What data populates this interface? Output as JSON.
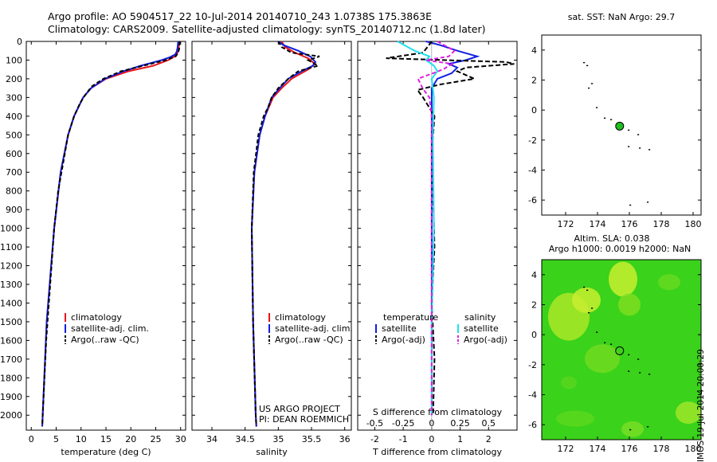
{
  "header": {
    "title_line1": "Argo profile: AO 5904517_22 10-Jul-2014 20140710_243 1.0738S 175.3863E",
    "title_line2": "Climatology: CARS2009. Satellite-adjusted climatology: synTS_20140712.nc (1.8d later)"
  },
  "footer_stamp": "IMOS 19-Jul-2014 20:00:29",
  "chart_data": [
    {
      "id": "temperature",
      "type": "line",
      "xlabel": "temperature (deg C)",
      "xlim": [
        -1,
        31
      ],
      "xticks": [
        0,
        5,
        10,
        15,
        20,
        25,
        30
      ],
      "ylim": [
        2080,
        0
      ],
      "yticks": [
        0,
        100,
        200,
        300,
        400,
        500,
        600,
        700,
        800,
        900,
        1000,
        1100,
        1200,
        1300,
        1400,
        1500,
        1600,
        1700,
        1800,
        1900,
        2000
      ],
      "legend": [
        "climatology",
        "satellite-adj. clim.",
        "Argo(..raw -QC)"
      ],
      "colors": [
        "#e8141a",
        "#1020e0",
        "#000000"
      ],
      "series": [
        {
          "name": "climatology",
          "y": [
            0,
            40,
            60,
            80,
            100,
            130,
            160,
            200,
            250,
            300,
            400,
            500,
            700,
            1000,
            1500,
            2000,
            2060
          ],
          "x": [
            29.7,
            29.6,
            29.4,
            28.8,
            27.5,
            24.5,
            19.5,
            15.0,
            12.0,
            10.4,
            8.6,
            7.4,
            5.9,
            4.6,
            3.1,
            2.3,
            2.2
          ]
        },
        {
          "name": "satellite-adj. clim.",
          "y": [
            0,
            30,
            55,
            70,
            85,
            100,
            130,
            160,
            200,
            250,
            300,
            400,
            500,
            700,
            1000,
            1500,
            2000,
            2060
          ],
          "x": [
            29.5,
            29.4,
            29.2,
            28.9,
            27.8,
            26.2,
            22.0,
            18.5,
            14.8,
            12.0,
            10.4,
            8.6,
            7.4,
            5.9,
            4.6,
            3.1,
            2.3,
            2.2
          ]
        },
        {
          "name": "Argo(..raw -QC)",
          "y": [
            0,
            40,
            60,
            80,
            100,
            130,
            160,
            200,
            240,
            280,
            330,
            400,
            500,
            650,
            800,
            1000,
            1300,
            1600,
            2000,
            2060
          ],
          "x": [
            29.8,
            29.7,
            29.5,
            29.0,
            27.0,
            22.5,
            18.0,
            14.5,
            12.2,
            11.0,
            9.8,
            8.6,
            7.4,
            6.4,
            5.4,
            4.6,
            3.8,
            3.0,
            2.3,
            2.2
          ]
        }
      ]
    },
    {
      "id": "salinity",
      "type": "line",
      "xlabel": "salinity",
      "xlim": [
        33.7,
        36.1
      ],
      "xticks": [
        34,
        34.5,
        35,
        35.5,
        36
      ],
      "ylim": [
        2080,
        0
      ],
      "legend": [
        "climatology",
        "satellite-adj. clim.",
        "Argo(..raw -QC)"
      ],
      "colors": [
        "#e8141a",
        "#1020e0",
        "#000000"
      ],
      "series": [
        {
          "name": "climatology",
          "y": [
            0,
            30,
            60,
            90,
            120,
            150,
            200,
            250,
            300,
            400,
            500,
            700,
            1000,
            1500,
            2000,
            2060
          ],
          "x": [
            35.05,
            35.1,
            35.25,
            35.45,
            35.55,
            35.45,
            35.2,
            35.05,
            34.92,
            34.8,
            34.72,
            34.64,
            34.6,
            34.62,
            34.66,
            34.67
          ]
        },
        {
          "name": "satellite-adj. clim.",
          "y": [
            0,
            20,
            50,
            80,
            110,
            130,
            160,
            200,
            250,
            300,
            400,
            500,
            700,
            1000,
            1500,
            2000,
            2060
          ],
          "x": [
            35.0,
            35.08,
            35.3,
            35.48,
            35.56,
            35.52,
            35.35,
            35.15,
            35.02,
            34.9,
            34.8,
            34.72,
            34.64,
            34.6,
            34.62,
            34.66,
            34.67
          ]
        },
        {
          "name": "Argo(..raw -QC)",
          "y": [
            0,
            30,
            60,
            80,
            100,
            130,
            160,
            200,
            250,
            300,
            350,
            400,
            500,
            700,
            1000,
            1500,
            2000,
            2060
          ],
          "x": [
            35.0,
            35.05,
            35.2,
            35.62,
            35.45,
            35.6,
            35.3,
            35.15,
            35.0,
            34.9,
            34.85,
            34.78,
            34.7,
            34.63,
            34.6,
            34.62,
            34.66,
            34.67
          ]
        }
      ]
    },
    {
      "id": "difference",
      "type": "line",
      "xlabel": "T difference from climatology",
      "xlabel_top": "S difference from climatology",
      "xlim": [
        -2.6,
        3.0
      ],
      "xticks": [
        -2,
        -1,
        0,
        1,
        2
      ],
      "xticks_top": [
        -0.5,
        -0.25,
        0,
        0.25,
        0.5
      ],
      "ylim": [
        2080,
        0
      ],
      "legend_headers": [
        "temperature",
        "salinity"
      ],
      "legend_left": [
        "satellite",
        "Argo(-adj)"
      ],
      "legend_right": [
        "satellite",
        "Argo(-adj)"
      ],
      "colors": [
        "#1020e0",
        "#000000",
        "#20e0f0",
        "#e020e0"
      ],
      "series": [
        {
          "name": "satellite",
          "y": [
            0,
            20,
            50,
            80,
            100,
            120,
            140,
            170,
            200,
            250,
            300,
            400,
            600,
            1000,
            1500,
            2000
          ],
          "x": [
            -0.2,
            0.3,
            0.9,
            1.6,
            1.2,
            0.6,
            0.9,
            0.7,
            0.2,
            0.0,
            0.0,
            0.0,
            0.0,
            0.0,
            0.0,
            0.0
          ]
        },
        {
          "name": "Argo(-adj)",
          "y": [
            0,
            60,
            90,
            100,
            110,
            120,
            140,
            160,
            180,
            200,
            230,
            260,
            300,
            400,
            600,
            800,
            1100,
            1400,
            1700,
            2000
          ],
          "x": [
            0.0,
            -0.3,
            -1.6,
            0.5,
            2.6,
            2.9,
            1.2,
            0.9,
            1.2,
            1.5,
            0.3,
            -0.5,
            -0.3,
            0.1,
            0.0,
            0.05,
            0.1,
            0.0,
            0.1,
            0.05
          ]
        },
        {
          "name": "satellite",
          "y": [
            0,
            50,
            80,
            100,
            130,
            160,
            200,
            300,
            500,
            1000,
            1500,
            2000
          ],
          "x": [
            -0.3,
            -0.15,
            -0.02,
            -0.05,
            0.02,
            0.05,
            0.0,
            0.02,
            0.01,
            0.02,
            0.0,
            0.0
          ]
        },
        {
          "name": "Argo(-adj)",
          "y": [
            0,
            50,
            80,
            100,
            120,
            150,
            200,
            250,
            300,
            400,
            600,
            1000,
            2000
          ],
          "x": [
            0.05,
            0.2,
            0.15,
            -0.05,
            0.18,
            0.1,
            -0.12,
            -0.08,
            -0.02,
            0.0,
            0.0,
            0.0,
            0.0
          ]
        }
      ]
    },
    {
      "id": "sst-map",
      "type": "scatter",
      "title": "sat. SST: NaN Argo: 29.7",
      "xlim": [
        170.5,
        180.5
      ],
      "ylim": [
        -7,
        5
      ],
      "xticks": [
        172,
        174,
        176,
        178,
        180
      ],
      "yticks": [
        4,
        2,
        0,
        -2,
        -4,
        -6
      ],
      "float_position": {
        "lon": 175.39,
        "lat": -1.07
      },
      "float_color": "#20c020"
    },
    {
      "id": "sla-map",
      "type": "heatmap",
      "title_line1": "Altim. SLA: 0.038",
      "title_line2": "Argo h1000: 0.0019 h2000: NaN",
      "xlim": [
        170.5,
        180.5
      ],
      "ylim": [
        -7,
        5
      ],
      "xticks": [
        172,
        174,
        176,
        178,
        180
      ],
      "yticks": [
        4,
        2,
        0,
        -2,
        -4,
        -6
      ],
      "float_position": {
        "lon": 175.39,
        "lat": -1.07
      }
    }
  ],
  "annotations": {
    "project_line1": "US ARGO PROJECT",
    "project_line2": "PI: DEAN ROEMMICH"
  }
}
